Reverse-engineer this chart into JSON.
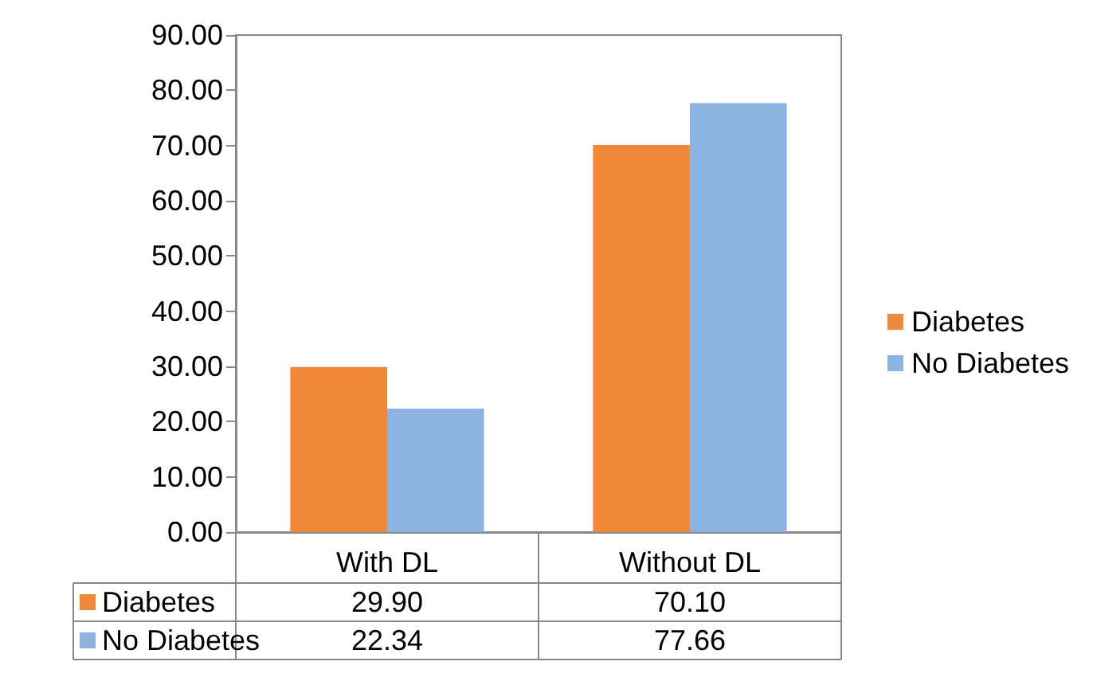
{
  "chart_data": {
    "type": "bar",
    "categories": [
      "With DL",
      "Without DL"
    ],
    "series": [
      {
        "name": "Diabetes",
        "color": "#f0883a",
        "values": [
          29.9,
          70.1
        ],
        "value_labels": [
          "29.90",
          "70.10"
        ]
      },
      {
        "name": "No Diabetes",
        "color": "#8db3e2",
        "values": [
          22.34,
          77.66
        ],
        "value_labels": [
          "22.34",
          "77.66"
        ]
      }
    ],
    "ylim": [
      0,
      90
    ],
    "yticks": [
      {
        "value": 0,
        "label": "0.00"
      },
      {
        "value": 10,
        "label": "10.00"
      },
      {
        "value": 20,
        "label": "20.00"
      },
      {
        "value": 30,
        "label": "30.00"
      },
      {
        "value": 40,
        "label": "40.00"
      },
      {
        "value": 50,
        "label": "50.00"
      },
      {
        "value": 60,
        "label": "60.00"
      },
      {
        "value": 70,
        "label": "70.00"
      },
      {
        "value": 80,
        "label": "80.00"
      },
      {
        "value": 90,
        "label": "90.00"
      }
    ],
    "grid": false,
    "legend": "right"
  }
}
